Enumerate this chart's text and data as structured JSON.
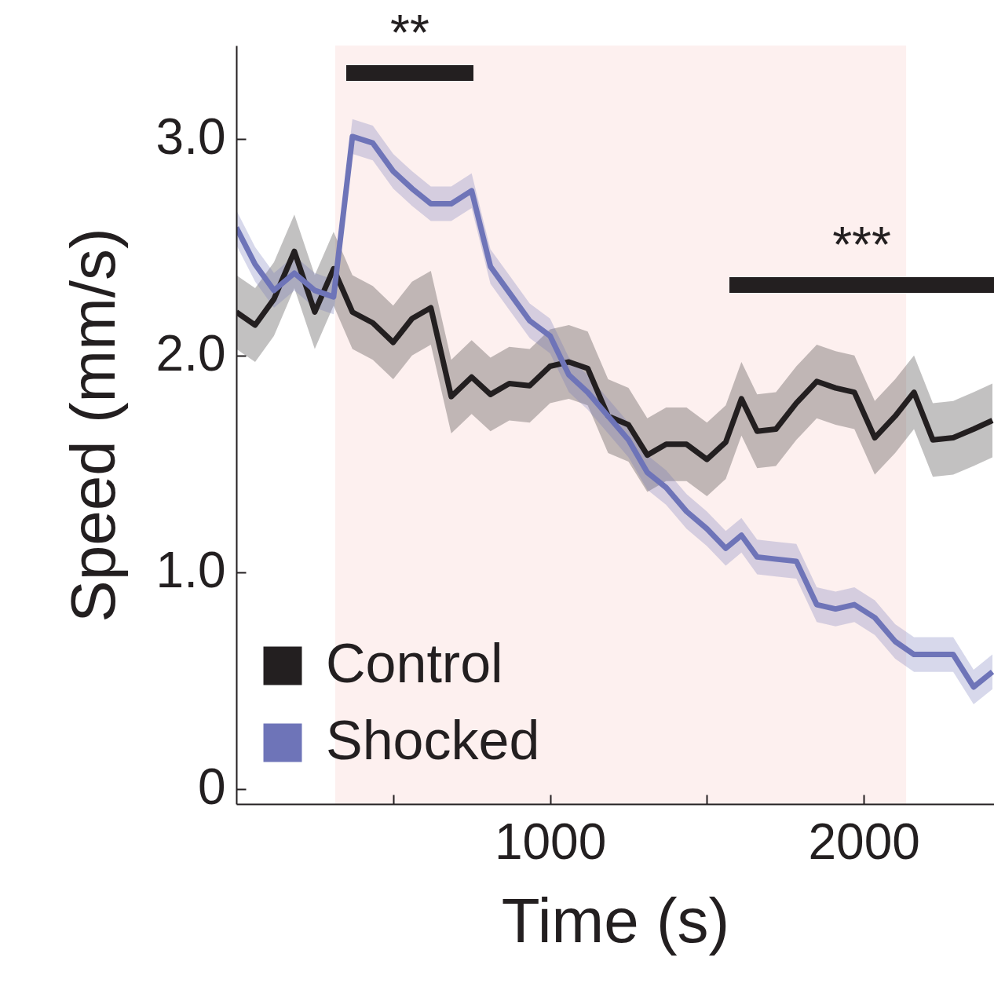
{
  "chart_data": {
    "type": "line",
    "xlabel": "Time (s)",
    "ylabel": "Speed (mm/s)",
    "x": [
      0,
      60,
      120,
      185,
      250,
      310,
      370,
      435,
      500,
      560,
      620,
      685,
      750,
      810,
      870,
      935,
      1000,
      1060,
      1120,
      1185,
      1250,
      1310,
      1370,
      1435,
      1500,
      1560,
      1610,
      1660,
      1720,
      1785,
      1850,
      1910,
      1970,
      2035,
      2100,
      2160,
      2220,
      2285,
      2350,
      2410
    ],
    "series": [
      {
        "name": "Control",
        "color": "#231f20",
        "values": [
          2.2,
          2.14,
          2.26,
          2.48,
          2.2,
          2.4,
          2.2,
          2.15,
          2.06,
          2.17,
          2.22,
          1.81,
          1.9,
          1.82,
          1.87,
          1.86,
          1.95,
          1.97,
          1.94,
          1.72,
          1.68,
          1.54,
          1.59,
          1.59,
          1.52,
          1.6,
          1.8,
          1.65,
          1.66,
          1.78,
          1.88,
          1.85,
          1.83,
          1.62,
          1.72,
          1.83,
          1.61,
          1.62,
          1.66,
          1.7
        ],
        "lower": [
          2.03,
          1.97,
          2.09,
          2.31,
          2.03,
          2.23,
          2.03,
          1.98,
          1.89,
          2.0,
          2.05,
          1.64,
          1.73,
          1.65,
          1.7,
          1.69,
          1.78,
          1.8,
          1.77,
          1.55,
          1.51,
          1.37,
          1.42,
          1.42,
          1.35,
          1.43,
          1.63,
          1.48,
          1.49,
          1.61,
          1.71,
          1.68,
          1.66,
          1.45,
          1.55,
          1.66,
          1.44,
          1.45,
          1.49,
          1.53
        ],
        "upper": [
          2.37,
          2.31,
          2.43,
          2.65,
          2.37,
          2.57,
          2.37,
          2.32,
          2.23,
          2.34,
          2.39,
          1.98,
          2.07,
          1.99,
          2.04,
          2.03,
          2.12,
          2.14,
          2.11,
          1.89,
          1.85,
          1.71,
          1.76,
          1.76,
          1.69,
          1.77,
          1.97,
          1.82,
          1.83,
          1.95,
          2.05,
          2.02,
          2.0,
          1.79,
          1.89,
          2.0,
          1.78,
          1.79,
          1.83,
          1.87
        ]
      },
      {
        "name": "Shocked",
        "color": "#6e74b8",
        "values": [
          2.59,
          2.42,
          2.3,
          2.38,
          2.3,
          2.27,
          3.01,
          2.98,
          2.85,
          2.77,
          2.7,
          2.7,
          2.76,
          2.41,
          2.29,
          2.16,
          2.09,
          1.91,
          1.83,
          1.72,
          1.61,
          1.46,
          1.39,
          1.28,
          1.2,
          1.11,
          1.17,
          1.07,
          1.06,
          1.05,
          0.85,
          0.83,
          0.85,
          0.79,
          0.68,
          0.62,
          0.62,
          0.62,
          0.47,
          0.54
        ],
        "lower": [
          2.51,
          2.34,
          2.22,
          2.3,
          2.22,
          2.19,
          2.93,
          2.9,
          2.77,
          2.69,
          2.62,
          2.62,
          2.68,
          2.33,
          2.21,
          2.08,
          2.01,
          1.83,
          1.75,
          1.64,
          1.53,
          1.38,
          1.31,
          1.2,
          1.12,
          1.03,
          1.09,
          0.99,
          0.98,
          0.97,
          0.77,
          0.75,
          0.77,
          0.71,
          0.6,
          0.54,
          0.54,
          0.54,
          0.39,
          0.46
        ],
        "upper": [
          2.67,
          2.5,
          2.38,
          2.46,
          2.38,
          2.35,
          3.09,
          3.06,
          2.93,
          2.85,
          2.78,
          2.78,
          2.84,
          2.49,
          2.37,
          2.24,
          2.17,
          1.99,
          1.91,
          1.8,
          1.69,
          1.54,
          1.47,
          1.36,
          1.28,
          1.19,
          1.25,
          1.15,
          1.14,
          1.13,
          0.93,
          0.91,
          0.93,
          0.87,
          0.76,
          0.7,
          0.7,
          0.7,
          0.55,
          0.62
        ]
      }
    ],
    "xlim": [
      0,
      2415
    ],
    "ylim": [
      -0.07,
      3.43
    ],
    "xticks": [
      {
        "value": 500,
        "label": null
      },
      1000,
      {
        "value": 1500,
        "label": null
      },
      2000
    ],
    "yticks": [
      0,
      {
        "value": 1,
        "label": "1.0"
      },
      {
        "value": 2,
        "label": "2.0"
      },
      {
        "value": 3,
        "label": "3.0"
      }
    ],
    "bands": [
      {
        "axis": "x",
        "from": 315,
        "to": 2135,
        "color": "#fdf0ef"
      }
    ],
    "annotations": [
      "**",
      "***"
    ],
    "legend": "bottom left",
    "grid": false,
    "marker": "none",
    "line_style": "solid"
  }
}
